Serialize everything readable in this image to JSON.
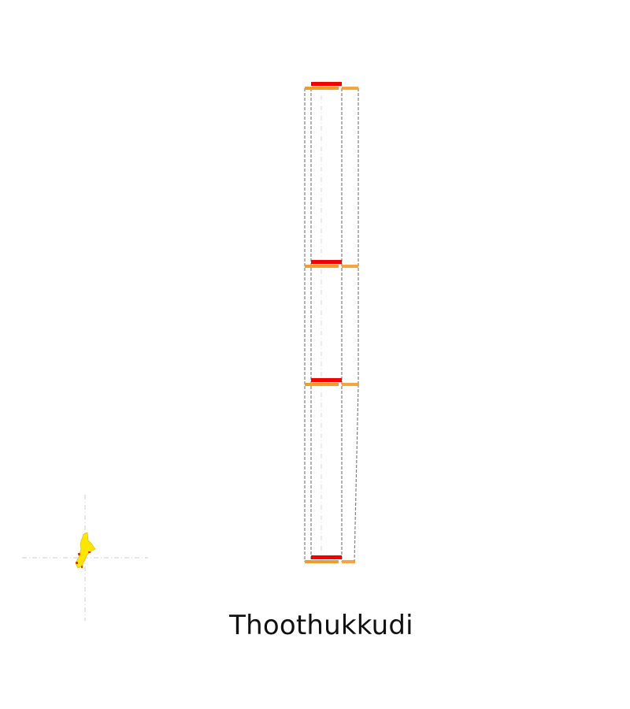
{
  "map": {
    "title": "Thoothukkudi",
    "colors": {
      "guide_line": "#cccccc",
      "cut_line": "#808080",
      "level_band": "#f39a2c",
      "marker_band": "#f20000",
      "locator_fill": "#ffe600",
      "locator_accent": "#e03c00"
    }
  }
}
